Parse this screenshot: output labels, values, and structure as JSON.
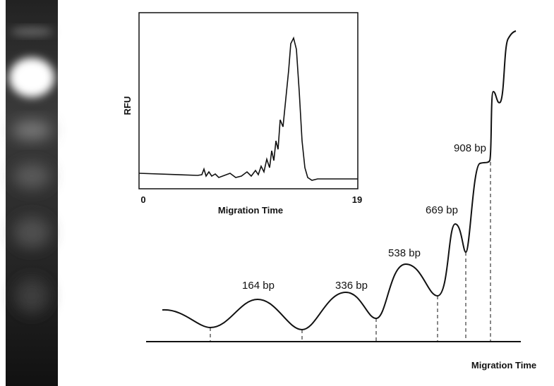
{
  "inset": {
    "y_label": "RFU",
    "x_label": "Migration Time",
    "x_ticks": [
      0,
      19
    ]
  },
  "main": {
    "peak_labels": [
      "164 bp",
      "336 bp",
      "538 bp",
      "669 bp",
      "908 bp"
    ],
    "x_label": "Migration Time"
  }
}
